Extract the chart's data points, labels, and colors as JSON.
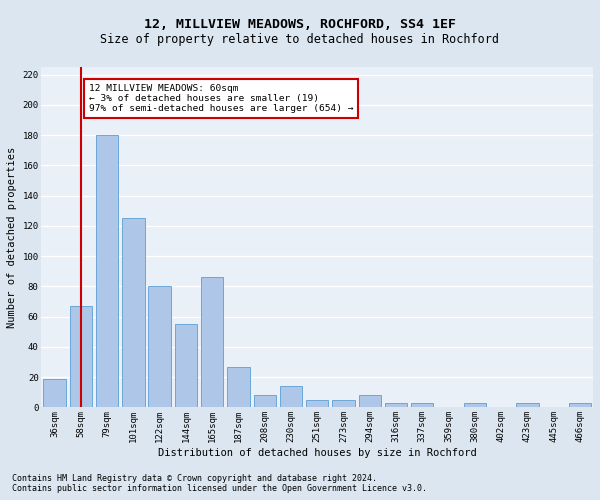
{
  "title": "12, MILLVIEW MEADOWS, ROCHFORD, SS4 1EF",
  "subtitle": "Size of property relative to detached houses in Rochford",
  "xlabel": "Distribution of detached houses by size in Rochford",
  "ylabel": "Number of detached properties",
  "footer_line1": "Contains HM Land Registry data © Crown copyright and database right 2024.",
  "footer_line2": "Contains public sector information licensed under the Open Government Licence v3.0.",
  "categories": [
    "36sqm",
    "58sqm",
    "79sqm",
    "101sqm",
    "122sqm",
    "144sqm",
    "165sqm",
    "187sqm",
    "208sqm",
    "230sqm",
    "251sqm",
    "273sqm",
    "294sqm",
    "316sqm",
    "337sqm",
    "359sqm",
    "380sqm",
    "402sqm",
    "423sqm",
    "445sqm",
    "466sqm"
  ],
  "values": [
    19,
    67,
    180,
    125,
    80,
    55,
    86,
    27,
    8,
    14,
    5,
    5,
    8,
    3,
    3,
    0,
    3,
    0,
    3,
    0,
    3
  ],
  "bar_color": "#aec6e8",
  "bar_edge_color": "#5a9fd4",
  "bar_edge_width": 0.6,
  "redline_x": 1,
  "redline_color": "#cc0000",
  "annotation_text": "12 MILLVIEW MEADOWS: 60sqm\n← 3% of detached houses are smaller (19)\n97% of semi-detached houses are larger (654) →",
  "annotation_box_color": "#ffffff",
  "annotation_box_edge": "#cc0000",
  "ylim": [
    0,
    225
  ],
  "yticks": [
    0,
    20,
    40,
    60,
    80,
    100,
    120,
    140,
    160,
    180,
    200,
    220
  ],
  "bg_color": "#dce6f0",
  "plot_bg_color": "#eaf0f7",
  "grid_color": "#ffffff",
  "title_fontsize": 9.5,
  "subtitle_fontsize": 8.5,
  "axis_label_fontsize": 7.5,
  "tick_fontsize": 6.5,
  "annotation_fontsize": 6.8,
  "footer_fontsize": 6.0
}
